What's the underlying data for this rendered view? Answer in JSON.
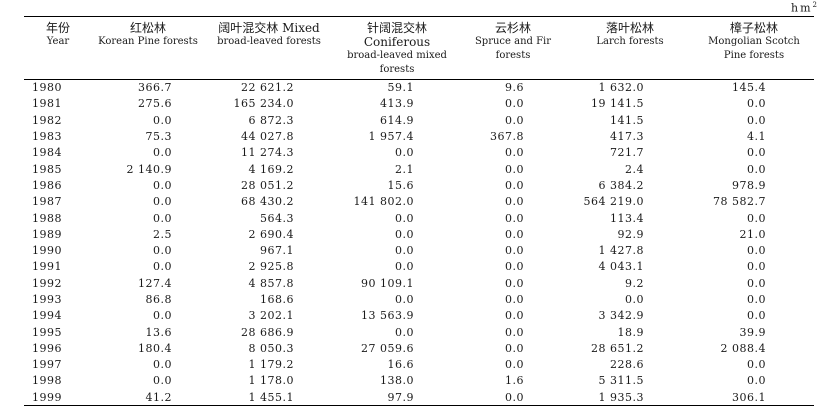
{
  "unit": "hm",
  "unit_sup": "2",
  "headers": [
    {
      "cn": "年份",
      "en": "Year"
    },
    {
      "cn": "红松林",
      "en": "Korean Pine forests"
    },
    {
      "cn": "阔叶混交林 Mixed",
      "en": "broad-leaved forests"
    },
    {
      "cn": "针阔混交林 Coniferous",
      "en": "broad-leaved mixed forests"
    },
    {
      "cn": "云杉林",
      "en": "Spruce and Fir forests"
    },
    {
      "cn": "落叶松林",
      "en": "Larch forests"
    },
    {
      "cn": "樟子松林",
      "en": "Mongolian Scotch Pine forests"
    }
  ],
  "rows": [
    [
      "1980",
      "366.7",
      "22 621.2",
      "59.1",
      "9.6",
      "1 632.0",
      "145.4"
    ],
    [
      "1981",
      "275.6",
      "165 234.0",
      "413.9",
      "0.0",
      "19 141.5",
      "0.0"
    ],
    [
      "1982",
      "0.0",
      "6 872.3",
      "614.9",
      "0.0",
      "141.5",
      "0.0"
    ],
    [
      "1983",
      "75.3",
      "44 027.8",
      "1 957.4",
      "367.8",
      "417.3",
      "4.1"
    ],
    [
      "1984",
      "0.0",
      "11 274.3",
      "0.0",
      "0.0",
      "721.7",
      "0.0"
    ],
    [
      "1985",
      "2 140.9",
      "4 169.2",
      "2.1",
      "0.0",
      "2.4",
      "0.0"
    ],
    [
      "1986",
      "0.0",
      "28 051.2",
      "15.6",
      "0.0",
      "6 384.2",
      "978.9"
    ],
    [
      "1987",
      "0.0",
      "68 430.2",
      "141 802.0",
      "0.0",
      "564 219.0",
      "78 582.7"
    ],
    [
      "1988",
      "0.0",
      "564.3",
      "0.0",
      "0.0",
      "113.4",
      "0.0"
    ],
    [
      "1989",
      "2.5",
      "2 690.4",
      "0.0",
      "0.0",
      "92.9",
      "21.0"
    ],
    [
      "1990",
      "0.0",
      "967.1",
      "0.0",
      "0.0",
      "1 427.8",
      "0.0"
    ],
    [
      "1991",
      "0.0",
      "2 925.8",
      "0.0",
      "0.0",
      "4 043.1",
      "0.0"
    ],
    [
      "1992",
      "127.4",
      "4 857.8",
      "90 109.1",
      "0.0",
      "9.2",
      "0.0"
    ],
    [
      "1993",
      "86.8",
      "168.6",
      "0.0",
      "0.0",
      "0.0",
      "0.0"
    ],
    [
      "1994",
      "0.0",
      "3 202.1",
      "13 563.9",
      "0.0",
      "3 342.9",
      "0.0"
    ],
    [
      "1995",
      "13.6",
      "28 686.9",
      "0.0",
      "0.0",
      "18.9",
      "39.9"
    ],
    [
      "1996",
      "180.4",
      "8 050.3",
      "27 059.6",
      "0.0",
      "28 651.2",
      "2 088.4"
    ],
    [
      "1997",
      "0.0",
      "1 179.2",
      "16.6",
      "0.0",
      "228.6",
      "0.0"
    ],
    [
      "1998",
      "0.0",
      "1 178.0",
      "138.0",
      "1.6",
      "5 311.5",
      "0.0"
    ],
    [
      "1999",
      "41.2",
      "1 455.1",
      "97.9",
      "0.0",
      "1 935.3",
      "306.1"
    ]
  ]
}
